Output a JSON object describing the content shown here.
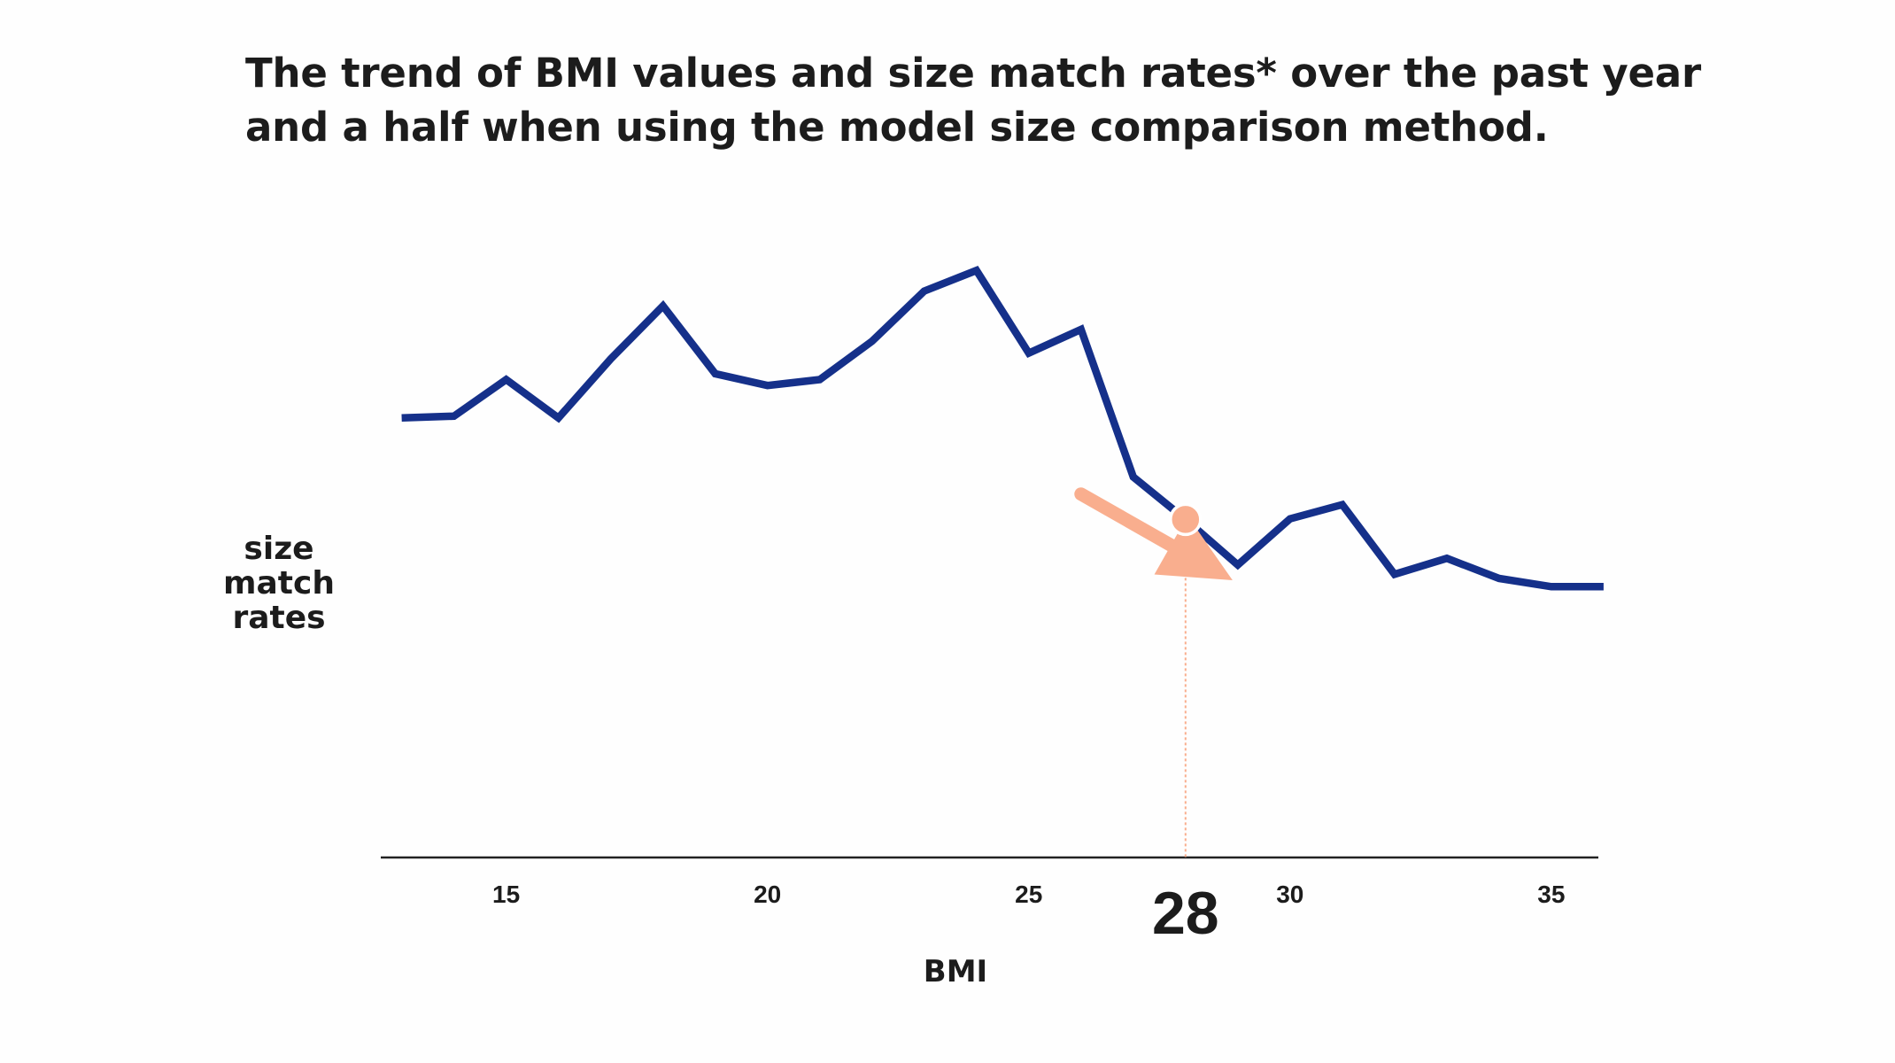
{
  "chart_data": {
    "type": "line",
    "title_lines": [
      "The trend of BMI values and size match rates* over the past year",
      "and a half when using the model size comparison method."
    ],
    "xlabel": "BMI",
    "ylabel_lines": [
      "size",
      "match",
      "rates"
    ],
    "xlim": [
      12.6,
      35.9
    ],
    "ylim": [
      0,
      100
    ],
    "x_ticks": [
      15,
      20,
      25,
      30,
      35
    ],
    "highlight": {
      "x": 28,
      "label": "28"
    },
    "series": [
      {
        "name": "size match rates",
        "color": "#15308a",
        "x": [
          13,
          14,
          15,
          16,
          17,
          18,
          19,
          20,
          21,
          22,
          23,
          24,
          25,
          26,
          27,
          28,
          29,
          30,
          31,
          32,
          33,
          34,
          35,
          36
        ],
        "values": [
          74.5,
          74.8,
          81,
          74.5,
          84.5,
          93.5,
          82,
          80,
          81,
          87.5,
          96,
          99.5,
          85.5,
          89.5,
          64.5,
          57.3,
          49.6,
          57.4,
          59.8,
          48,
          50.7,
          47.3,
          45.9,
          45.9
        ]
      }
    ],
    "annotation": {
      "arrow": {
        "from": [
          26.0,
          61.6
        ],
        "to": [
          28.9,
          47.0
        ],
        "color": "#f9ae8e"
      },
      "marker_color": "#f9ae8e"
    }
  }
}
